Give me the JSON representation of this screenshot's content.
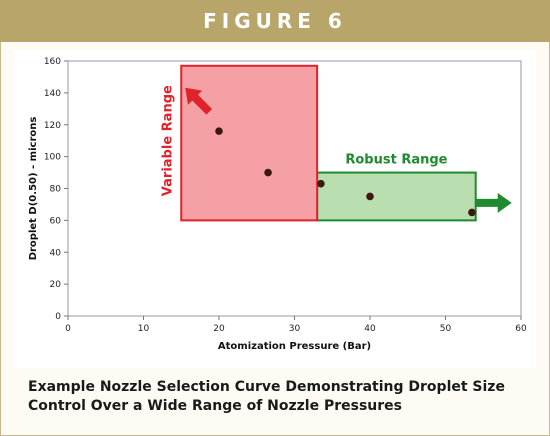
{
  "figure_label": "FIGURE 6",
  "caption": "Example Nozzle Selection Curve Demonstrating Droplet Size Control Over a Wide Range of Nozzle Pressures",
  "colors": {
    "banner": "#b8a56a",
    "variable_fill": "#f4a0a4",
    "variable_stroke": "#e0222b",
    "robust_fill": "#b9deb0",
    "robust_stroke": "#1f8a2e",
    "points": "#3a1a10"
  },
  "chart_data": {
    "type": "scatter",
    "xlabel": "Atomization Pressure (Bar)",
    "ylabel": "Droplet D(0.50) - microns",
    "xlim": [
      0,
      60
    ],
    "ylim": [
      0,
      160
    ],
    "x_ticks": [
      0,
      10,
      20,
      30,
      40,
      50,
      60
    ],
    "y_ticks": [
      0,
      20,
      40,
      60,
      80,
      100,
      120,
      140,
      160
    ],
    "grid": false,
    "points": [
      {
        "x": 20,
        "y": 116
      },
      {
        "x": 26.5,
        "y": 90
      },
      {
        "x": 33.5,
        "y": 83
      },
      {
        "x": 40,
        "y": 75
      },
      {
        "x": 53.5,
        "y": 65
      }
    ],
    "regions": [
      {
        "label": "Variable Range",
        "x": [
          15,
          33
        ],
        "y": [
          60,
          157
        ],
        "arrow": "up-left"
      },
      {
        "label": "Robust Range",
        "x": [
          33,
          54
        ],
        "y": [
          60,
          90
        ],
        "arrow": "right"
      }
    ]
  }
}
